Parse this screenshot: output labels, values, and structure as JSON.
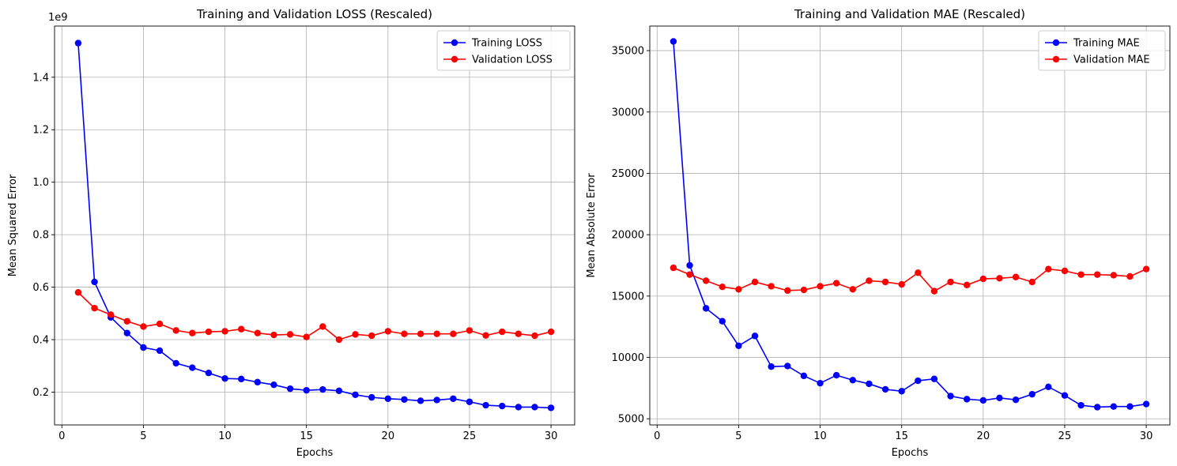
{
  "chart_data": [
    {
      "type": "line",
      "title": "Training and Validation LOSS (Rescaled)",
      "xlabel": "Epochs",
      "ylabel": "Mean Squared Error",
      "offset_text": "1e9",
      "xlim": [
        -0.45,
        31.45
      ],
      "ylim": [
        0.075,
        1.595
      ],
      "xticks": [
        0,
        5,
        10,
        15,
        20,
        25,
        30
      ],
      "xtick_labels": [
        "0",
        "5",
        "10",
        "15",
        "20",
        "25",
        "30"
      ],
      "yticks": [
        0.2,
        0.4,
        0.6,
        0.8,
        1.0,
        1.2,
        1.4
      ],
      "ytick_labels": [
        "0.2",
        "0.4",
        "0.6",
        "0.8",
        "1.0",
        "1.2",
        "1.4"
      ],
      "grid": true,
      "legend_position": "top-right",
      "x": [
        1,
        2,
        3,
        4,
        5,
        6,
        7,
        8,
        9,
        10,
        11,
        12,
        13,
        14,
        15,
        16,
        17,
        18,
        19,
        20,
        21,
        22,
        23,
        24,
        25,
        26,
        27,
        28,
        29,
        30
      ],
      "series": [
        {
          "name": "Training LOSS",
          "color": "#0000ff",
          "values": [
            1.53,
            0.62,
            0.485,
            0.425,
            0.37,
            0.358,
            0.31,
            0.293,
            0.273,
            0.252,
            0.25,
            0.238,
            0.228,
            0.213,
            0.207,
            0.21,
            0.205,
            0.19,
            0.18,
            0.175,
            0.172,
            0.167,
            0.17,
            0.175,
            0.163,
            0.15,
            0.147,
            0.143,
            0.143,
            0.14
          ]
        },
        {
          "name": "Validation LOSS",
          "color": "#ff0000",
          "values": [
            0.58,
            0.52,
            0.495,
            0.47,
            0.45,
            0.46,
            0.435,
            0.425,
            0.43,
            0.432,
            0.44,
            0.425,
            0.418,
            0.42,
            0.41,
            0.45,
            0.4,
            0.42,
            0.415,
            0.432,
            0.422,
            0.422,
            0.422,
            0.422,
            0.435,
            0.416,
            0.43,
            0.422,
            0.415,
            0.43
          ]
        }
      ]
    },
    {
      "type": "line",
      "title": "Training and Validation MAE (Rescaled)",
      "xlabel": "Epochs",
      "ylabel": "Mean Absolute Error",
      "offset_text": "",
      "xlim": [
        -0.45,
        31.45
      ],
      "ylim": [
        4500,
        37000
      ],
      "xticks": [
        0,
        5,
        10,
        15,
        20,
        25,
        30
      ],
      "xtick_labels": [
        "0",
        "5",
        "10",
        "15",
        "20",
        "25",
        "30"
      ],
      "yticks": [
        5000,
        10000,
        15000,
        20000,
        25000,
        30000,
        35000
      ],
      "ytick_labels": [
        "5000",
        "10000",
        "15000",
        "20000",
        "25000",
        "30000",
        "35000"
      ],
      "grid": true,
      "legend_position": "top-right",
      "x": [
        1,
        2,
        3,
        4,
        5,
        6,
        7,
        8,
        9,
        10,
        11,
        12,
        13,
        14,
        15,
        16,
        17,
        18,
        19,
        20,
        21,
        22,
        23,
        24,
        25,
        26,
        27,
        28,
        29,
        30
      ],
      "series": [
        {
          "name": "Training MAE",
          "color": "#0000ff",
          "values": [
            35750,
            17500,
            14000,
            12950,
            10950,
            11750,
            9250,
            9300,
            8500,
            7900,
            8550,
            8150,
            7850,
            7400,
            7250,
            8100,
            8250,
            6850,
            6600,
            6500,
            6700,
            6550,
            7000,
            7600,
            6900,
            6100,
            5950,
            6000,
            6000,
            6200
          ]
        },
        {
          "name": "Validation MAE",
          "color": "#ff0000",
          "values": [
            17300,
            16750,
            16250,
            15750,
            15550,
            16150,
            15800,
            15450,
            15500,
            15800,
            16050,
            15550,
            16250,
            16150,
            15950,
            16900,
            15400,
            16150,
            15900,
            16400,
            16450,
            16550,
            16150,
            17200,
            17050,
            16750,
            16750,
            16700,
            16600,
            17200
          ]
        }
      ]
    }
  ]
}
